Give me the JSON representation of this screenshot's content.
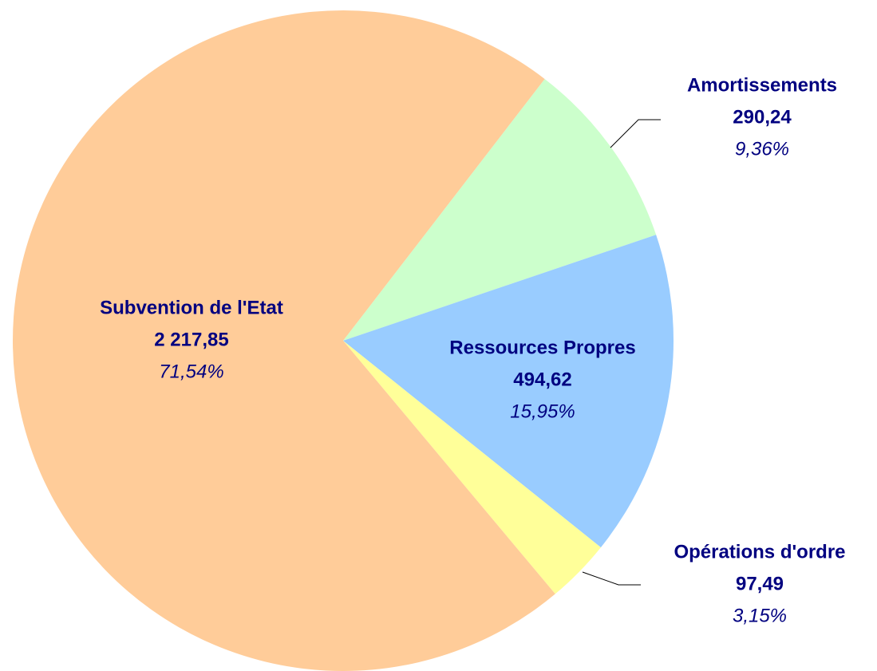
{
  "chart_data": {
    "type": "pie",
    "categories": [
      "Amortissements",
      "Ressources Propres",
      "Opérations d'ordre",
      "Subvention de l'Etat"
    ],
    "values": [
      290.24,
      494.62,
      97.49,
      2217.85
    ],
    "value_labels": [
      "290,24",
      "494,62",
      "97,49",
      "2 217,85"
    ],
    "percents": [
      9.36,
      15.95,
      3.15,
      71.54
    ],
    "percent_labels": [
      "9,36%",
      "15,95%",
      "3,15%",
      "71,54%"
    ],
    "colors": [
      "#ccffcc",
      "#99ccff",
      "#ffff99",
      "#ffcc99"
    ]
  }
}
